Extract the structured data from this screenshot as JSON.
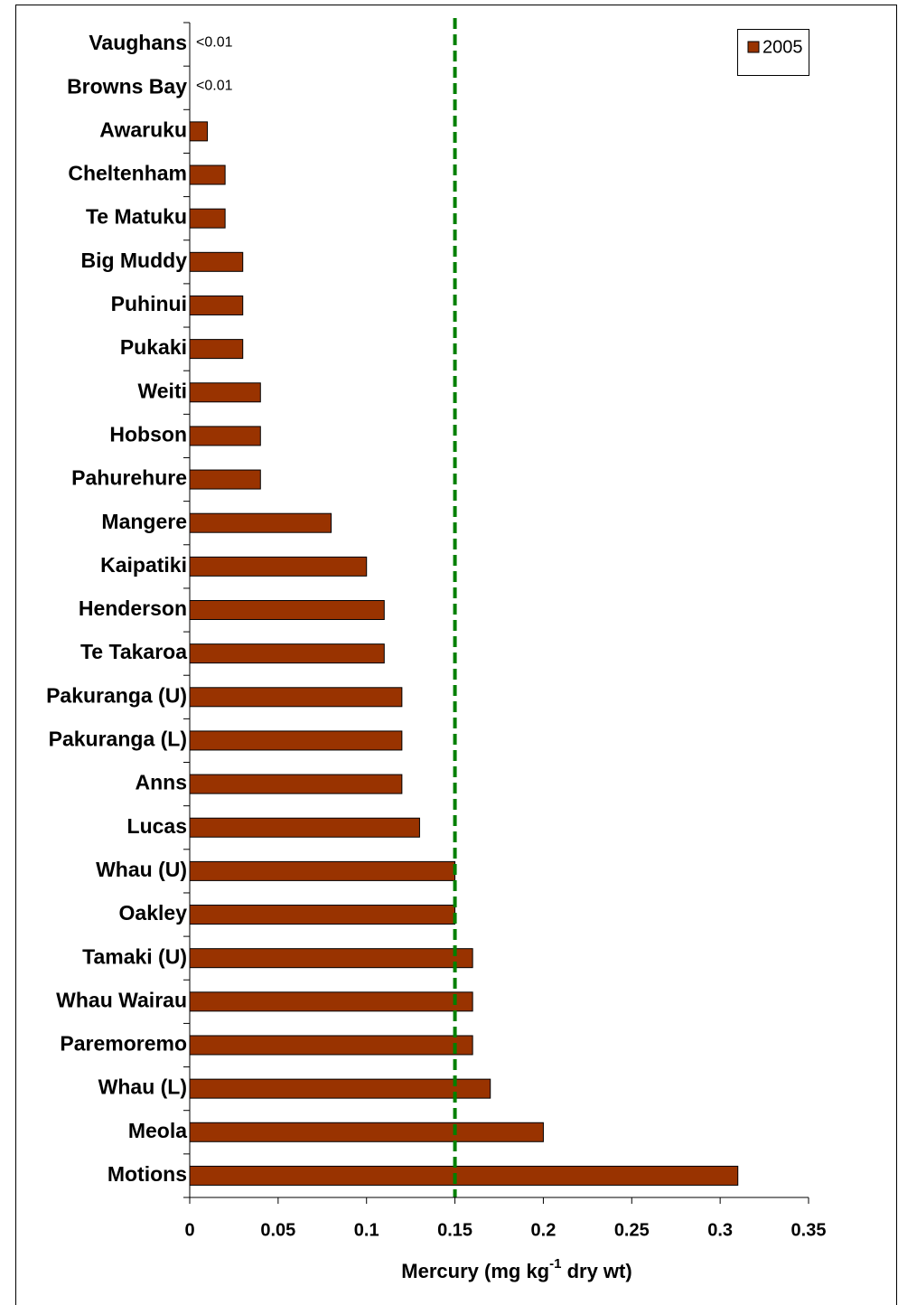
{
  "chart_data": {
    "type": "bar",
    "orientation": "horizontal",
    "categories": [
      "Vaughans",
      "Browns Bay",
      "Awaruku",
      "Cheltenham",
      "Te Matuku",
      "Big Muddy",
      "Puhinui",
      "Pukaki",
      "Weiti",
      "Hobson",
      "Pahurehure",
      "Mangere",
      "Kaipatiki",
      "Henderson",
      "Te Takaroa",
      "Pakuranga (U)",
      "Pakuranga (L)",
      "Anns",
      "Lucas",
      "Whau (U)",
      "Oakley",
      "Tamaki (U)",
      "Whau Wairau",
      "Paremoremo",
      "Whau (L)",
      "Meola",
      "Motions"
    ],
    "series": [
      {
        "name": "2005",
        "color": "#993300",
        "values": [
          null,
          null,
          0.01,
          0.02,
          0.02,
          0.03,
          0.03,
          0.03,
          0.04,
          0.04,
          0.04,
          0.08,
          0.1,
          0.11,
          0.11,
          0.12,
          0.12,
          0.12,
          0.13,
          0.15,
          0.15,
          0.16,
          0.16,
          0.16,
          0.17,
          0.2,
          0.31
        ],
        "value_labels": [
          "<0.01",
          "<0.01",
          null,
          null,
          null,
          null,
          null,
          null,
          null,
          null,
          null,
          null,
          null,
          null,
          null,
          null,
          null,
          null,
          null,
          null,
          null,
          null,
          null,
          null,
          null,
          null,
          null
        ]
      }
    ],
    "xlabel": [
      "Mercury (mg kg",
      "-1",
      " dry wt)"
    ],
    "xlim": [
      0,
      0.35
    ],
    "xticks": [
      0,
      0.05,
      0.1,
      0.15,
      0.2,
      0.25,
      0.3,
      0.35
    ],
    "reference_line": {
      "value": 0.15,
      "color": "#008000"
    },
    "legend": "top-right"
  }
}
